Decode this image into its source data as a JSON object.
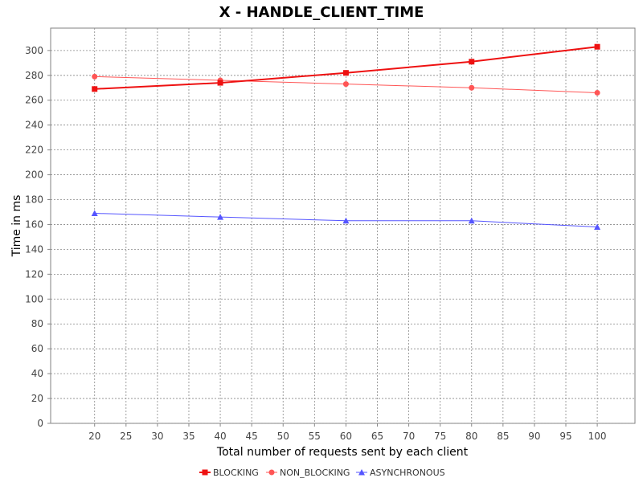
{
  "chart_data": {
    "type": "line",
    "title": "X - HANDLE_CLIENT_TIME",
    "xlabel": "Total number of requests sent by each client",
    "ylabel": "Time in ms",
    "xlim": [
      13,
      106
    ],
    "ylim": [
      0,
      318
    ],
    "xticks": [
      20,
      25,
      30,
      35,
      40,
      45,
      50,
      55,
      60,
      65,
      70,
      75,
      80,
      85,
      90,
      95,
      100
    ],
    "yticks": [
      0,
      20,
      40,
      60,
      80,
      100,
      120,
      140,
      160,
      180,
      200,
      220,
      240,
      260,
      280,
      300
    ],
    "grid": true,
    "legend_position": "bottom",
    "x": [
      20,
      40,
      60,
      80,
      100
    ],
    "series": [
      {
        "name": "BLOCKING",
        "values": [
          269,
          274,
          282,
          291,
          303
        ],
        "color": "#ee1111",
        "marker": "square",
        "line_width": 2
      },
      {
        "name": "NON_BLOCKING",
        "values": [
          279,
          276,
          273,
          270,
          266
        ],
        "color": "#ff5555",
        "marker": "circle",
        "line_width": 1
      },
      {
        "name": "ASYNCHRONOUS",
        "values": [
          169,
          166,
          163,
          163,
          158
        ],
        "color": "#5555ff",
        "marker": "triangle",
        "line_width": 1
      }
    ]
  }
}
